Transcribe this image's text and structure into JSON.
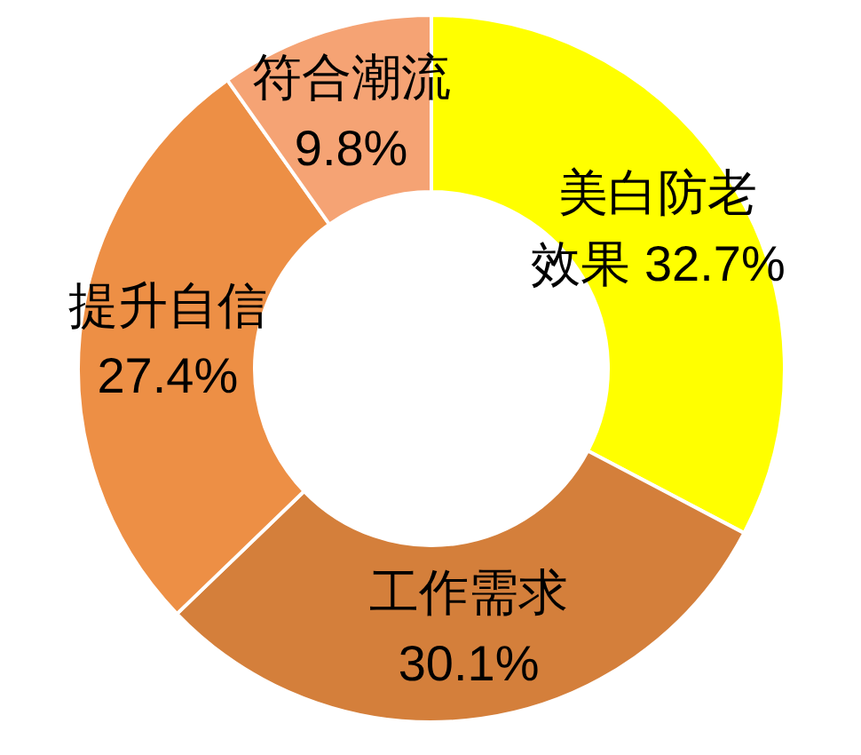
{
  "chart_data": {
    "type": "donut",
    "categories": [
      "美白防老效果",
      "工作需求",
      "提升自信",
      "符合潮流"
    ],
    "values": [
      32.7,
      30.1,
      27.4,
      9.8
    ],
    "colors": [
      "#ffff00",
      "#d47f3b",
      "#ed8f45",
      "#f5a374"
    ],
    "value_labels": [
      "32.7%",
      "30.1%",
      "27.4%",
      "9.8%"
    ]
  }
}
